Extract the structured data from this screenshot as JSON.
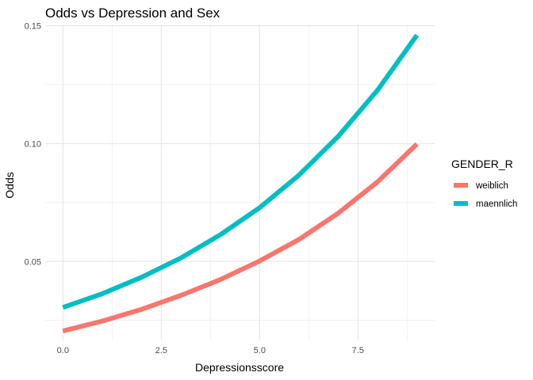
{
  "chart_data": {
    "type": "line",
    "title": "Odds vs Depression and Sex",
    "xlabel": "Depressionsscore",
    "ylabel": "Odds",
    "xlim": [
      -0.45,
      9.45
    ],
    "ylim": [
      0.0165,
      0.1505
    ],
    "x_ticks": [
      0.0,
      2.5,
      5.0,
      7.5
    ],
    "x_tick_labels": [
      "0.0",
      "2.5",
      "5.0",
      "7.5"
    ],
    "y_ticks": [
      0.05,
      0.1,
      0.15
    ],
    "y_tick_labels": [
      "0.05",
      "0.10",
      "0.15"
    ],
    "grid": true,
    "legend": {
      "title": "GENDER_R",
      "position": "right"
    },
    "x": [
      0,
      1,
      2,
      3,
      4,
      5,
      6,
      7,
      8,
      9
    ],
    "series": [
      {
        "name": "weiblich",
        "color": "#F8766D",
        "values": [
          0.0205,
          0.0247,
          0.0297,
          0.0356,
          0.0423,
          0.0502,
          0.0593,
          0.0705,
          0.0838,
          0.0998
        ]
      },
      {
        "name": "maennlich",
        "color": "#00BFC4",
        "values": [
          0.0305,
          0.0363,
          0.0433,
          0.0515,
          0.0613,
          0.0728,
          0.0866,
          0.1031,
          0.1227,
          0.146
        ]
      }
    ]
  }
}
